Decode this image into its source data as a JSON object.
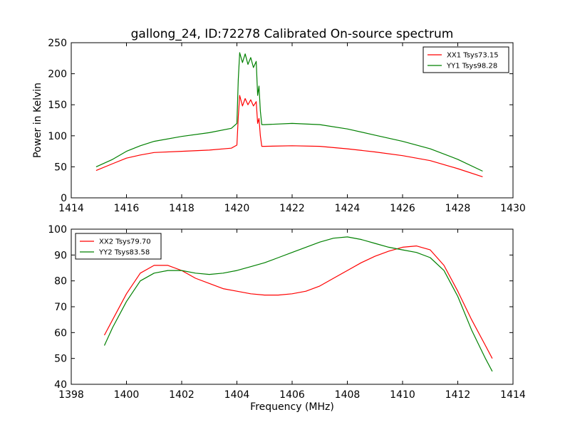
{
  "figure": {
    "title": "gallong_24, ID:72278 Calibrated On-source spectrum"
  },
  "chart_data": [
    {
      "type": "line",
      "title": "gallong_24, ID:72278 Calibrated On-source spectrum",
      "xlabel": "",
      "ylabel": "Power in Kelvin",
      "xlim": [
        1414,
        1430
      ],
      "ylim": [
        0,
        250
      ],
      "xticks": [
        1414,
        1416,
        1418,
        1420,
        1422,
        1424,
        1426,
        1428,
        1430
      ],
      "yticks": [
        0,
        50,
        100,
        150,
        200,
        250
      ],
      "grid": false,
      "legend_position": "top-right",
      "series": [
        {
          "name": "XX1 Tsys73.15",
          "color": "#ff0000",
          "x": [
            1414.9,
            1415.5,
            1416,
            1416.5,
            1417,
            1418,
            1419,
            1419.8,
            1420.0,
            1420.05,
            1420.1,
            1420.2,
            1420.3,
            1420.4,
            1420.5,
            1420.6,
            1420.7,
            1420.75,
            1420.8,
            1420.85,
            1420.9,
            1421,
            1422,
            1423,
            1424,
            1425,
            1426,
            1427,
            1428,
            1428.9
          ],
          "y": [
            44,
            55,
            64,
            69,
            73,
            75,
            77,
            80,
            85,
            130,
            165,
            148,
            160,
            150,
            158,
            148,
            155,
            120,
            128,
            100,
            83,
            83,
            84,
            83,
            79,
            74,
            68,
            60,
            47,
            34
          ]
        },
        {
          "name": "YY1 Tsys98.28",
          "color": "#008000",
          "x": [
            1414.9,
            1415.5,
            1416,
            1416.5,
            1417,
            1418,
            1419,
            1419.8,
            1420.0,
            1420.05,
            1420.1,
            1420.2,
            1420.3,
            1420.4,
            1420.5,
            1420.6,
            1420.7,
            1420.75,
            1420.8,
            1420.85,
            1420.9,
            1421,
            1422,
            1423,
            1424,
            1425,
            1426,
            1427,
            1428,
            1428.9
          ],
          "y": [
            50,
            62,
            75,
            84,
            91,
            99,
            105,
            112,
            120,
            190,
            234,
            218,
            232,
            215,
            226,
            210,
            220,
            165,
            180,
            140,
            118,
            118,
            120,
            118,
            111,
            101,
            91,
            79,
            62,
            43
          ]
        }
      ]
    },
    {
      "type": "line",
      "title": "",
      "xlabel": "Frequency (MHz)",
      "ylabel": "",
      "xlim": [
        1398,
        1414
      ],
      "ylim": [
        40,
        100
      ],
      "xticks": [
        1398,
        1400,
        1402,
        1404,
        1406,
        1408,
        1410,
        1412,
        1414
      ],
      "yticks": [
        40,
        50,
        60,
        70,
        80,
        90,
        100
      ],
      "grid": false,
      "legend_position": "top-left",
      "series": [
        {
          "name": "XX2 Tsys79.70",
          "color": "#ff0000",
          "x": [
            1399.2,
            1399.5,
            1400,
            1400.5,
            1401,
            1401.5,
            1402,
            1402.5,
            1403,
            1403.5,
            1404,
            1404.5,
            1405,
            1405.5,
            1406,
            1406.5,
            1407,
            1407.5,
            1408,
            1408.5,
            1409,
            1409.5,
            1410,
            1410.5,
            1411,
            1411.5,
            1412,
            1412.5,
            1413,
            1413.25
          ],
          "y": [
            59,
            65,
            75,
            83,
            86,
            86,
            84,
            81,
            79,
            77,
            76,
            75,
            74.5,
            74.5,
            75,
            76,
            78,
            81,
            84,
            87,
            89.5,
            91.5,
            93,
            93.5,
            92,
            86,
            76,
            65,
            55,
            50
          ]
        },
        {
          "name": "YY2 Tsys83.58",
          "color": "#008000",
          "x": [
            1399.2,
            1399.5,
            1400,
            1400.5,
            1401,
            1401.5,
            1402,
            1402.5,
            1403,
            1403.5,
            1404,
            1404.5,
            1405,
            1405.5,
            1406,
            1406.5,
            1407,
            1407.5,
            1408,
            1408.5,
            1409,
            1409.5,
            1410,
            1410.5,
            1411,
            1411.5,
            1412,
            1412.5,
            1413,
            1413.25
          ],
          "y": [
            55,
            62,
            72,
            80,
            83,
            84,
            84,
            83,
            82.5,
            83,
            84,
            85.5,
            87,
            89,
            91,
            93,
            95,
            96.5,
            97,
            96,
            94.5,
            93,
            92,
            91,
            89,
            84,
            74,
            61,
            50,
            45
          ]
        }
      ]
    }
  ]
}
